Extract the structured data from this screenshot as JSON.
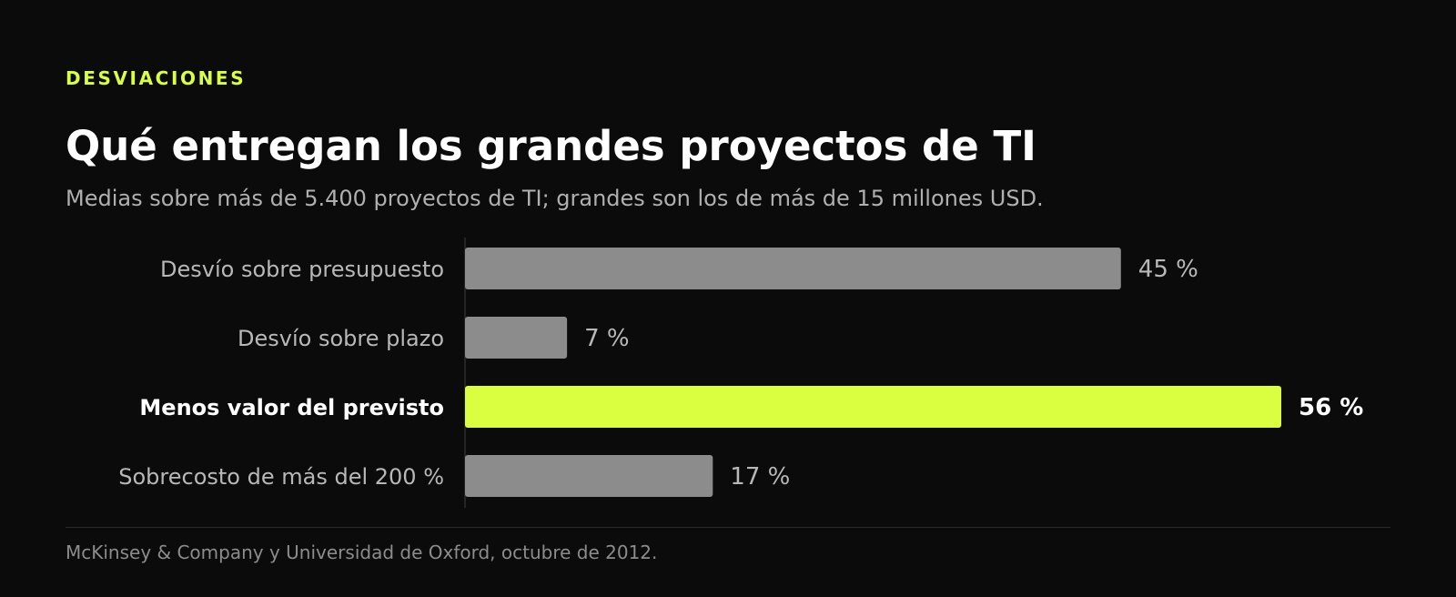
{
  "header": {
    "eyebrow": "DESVIACIONES",
    "title": "Qué entregan los grandes proyectos de TI",
    "subtitle": "Medias sobre más de 5.400 proyectos de TI; grandes son los de más de 15 millones USD."
  },
  "footer": {
    "source": "McKinsey & Company y Universidad de Oxford, octubre de 2012."
  },
  "colors": {
    "background": "#0b0b0b",
    "accent": "#d9ff40",
    "bar_default": "#8c8c8c",
    "label_default": "#b8b8b8",
    "label_highlight": "#ffffff"
  },
  "chart_data": {
    "type": "bar",
    "orientation": "horizontal",
    "categories": [
      "Desvío sobre presupuesto",
      "Desvío sobre plazo",
      "Menos valor del previsto",
      "Sobrecosto de más del 200 %"
    ],
    "values": [
      45,
      7,
      56,
      17
    ],
    "value_labels": [
      "45 %",
      "7 %",
      "56 %",
      "17 %"
    ],
    "highlight_index": 2,
    "unit": "%",
    "xlim": [
      0,
      56
    ],
    "grid": false,
    "legend": "none"
  }
}
